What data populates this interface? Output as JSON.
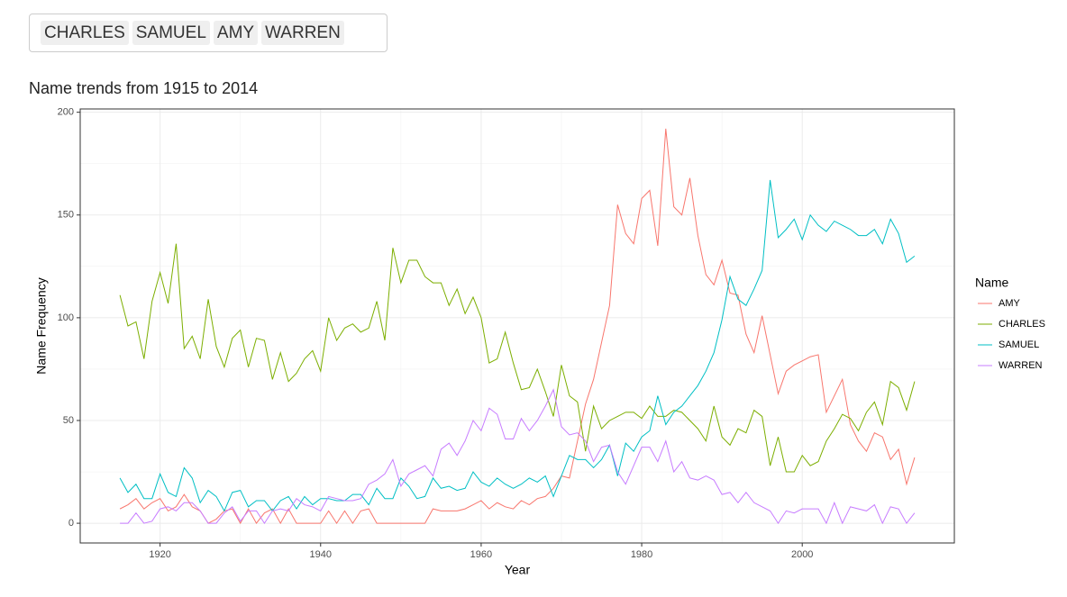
{
  "input": {
    "selected": [
      "CHARLES",
      "SAMUEL",
      "AMY",
      "WARREN"
    ]
  },
  "chart_data": {
    "type": "line",
    "title": "Name trends from 1915 to 2014",
    "x_label": "Year",
    "y_label": "Name Frequency",
    "legend_title": "Name",
    "legend": "right",
    "grid": true,
    "x": [
      1915,
      1916,
      1917,
      1918,
      1919,
      1920,
      1921,
      1922,
      1923,
      1924,
      1925,
      1926,
      1927,
      1928,
      1929,
      1930,
      1931,
      1932,
      1933,
      1934,
      1935,
      1936,
      1937,
      1938,
      1939,
      1940,
      1941,
      1942,
      1943,
      1944,
      1945,
      1946,
      1947,
      1948,
      1949,
      1950,
      1951,
      1952,
      1953,
      1954,
      1955,
      1956,
      1957,
      1958,
      1959,
      1960,
      1961,
      1962,
      1963,
      1964,
      1965,
      1966,
      1967,
      1968,
      1969,
      1970,
      1971,
      1972,
      1973,
      1974,
      1975,
      1976,
      1977,
      1978,
      1979,
      1980,
      1981,
      1982,
      1983,
      1984,
      1985,
      1986,
      1987,
      1988,
      1989,
      1990,
      1991,
      1992,
      1993,
      1994,
      1995,
      1996,
      1997,
      1998,
      1999,
      2000,
      2001,
      2002,
      2003,
      2004,
      2005,
      2006,
      2007,
      2008,
      2009,
      2010,
      2011,
      2012,
      2013,
      2014
    ],
    "xlim": [
      1910.05,
      2018.95
    ],
    "xticks": [
      1920,
      1940,
      1960,
      1980,
      2000
    ],
    "ylim": [
      -9.6,
      201.6
    ],
    "yticks": [
      0,
      50,
      100,
      150,
      200
    ],
    "series": [
      {
        "name": "AMY",
        "color": "#F8766D",
        "values": [
          7,
          9,
          12,
          7,
          10,
          12,
          6,
          8,
          14,
          8,
          6,
          0,
          2,
          6,
          7,
          0,
          7,
          0,
          5,
          7,
          0,
          7,
          0,
          0,
          0,
          0,
          6,
          0,
          6,
          0,
          6,
          7,
          0,
          0,
          0,
          0,
          0,
          0,
          0,
          7,
          6,
          6,
          6,
          7,
          9,
          11,
          7,
          10,
          8,
          7,
          11,
          9,
          12,
          13,
          17,
          23,
          22,
          40,
          58,
          70,
          88,
          106,
          155,
          141,
          136,
          158,
          162,
          135,
          192,
          154,
          150,
          168,
          140,
          121,
          116,
          128,
          112,
          111,
          92,
          83,
          101,
          82,
          63,
          74,
          77,
          79,
          81,
          82,
          54,
          62,
          70,
          48,
          40,
          35,
          44,
          42,
          31,
          36,
          19,
          32
        ]
      },
      {
        "name": "CHARLES",
        "color": "#7CAE00",
        "values": [
          111,
          96,
          98,
          80,
          108,
          122,
          107,
          136,
          85,
          91,
          80,
          109,
          86,
          76,
          90,
          94,
          76,
          90,
          89,
          70,
          83,
          69,
          73,
          80,
          84,
          74,
          100,
          89,
          95,
          97,
          93,
          95,
          108,
          89,
          134,
          117,
          128,
          128,
          120,
          117,
          117,
          106,
          114,
          102,
          110,
          100,
          78,
          80,
          93,
          78,
          65,
          66,
          75,
          64,
          52,
          77,
          62,
          59,
          35,
          57,
          46,
          50,
          52,
          54,
          54,
          51,
          57,
          52,
          52,
          55,
          54,
          50,
          46,
          40,
          57,
          42,
          38,
          46,
          44,
          55,
          52,
          28,
          42,
          25,
          25,
          33,
          28,
          30,
          40,
          46,
          53,
          51,
          45,
          54,
          59,
          48,
          69,
          66,
          55,
          69
        ]
      },
      {
        "name": "SAMUEL",
        "color": "#00BFC4",
        "values": [
          22,
          15,
          19,
          12,
          12,
          24,
          15,
          13,
          27,
          22,
          10,
          16,
          13,
          6,
          15,
          16,
          8,
          11,
          11,
          6,
          11,
          13,
          7,
          13,
          9,
          12,
          12,
          11,
          11,
          14,
          14,
          9,
          17,
          12,
          12,
          22,
          18,
          12,
          13,
          22,
          17,
          18,
          16,
          17,
          25,
          20,
          18,
          22,
          19,
          17,
          19,
          22,
          20,
          23,
          13,
          23,
          33,
          31,
          31,
          27,
          31,
          38,
          23,
          39,
          35,
          42,
          45,
          62,
          48,
          54,
          57,
          62,
          67,
          74,
          83,
          99,
          120,
          109,
          106,
          114,
          123,
          167,
          139,
          143,
          148,
          138,
          150,
          145,
          142,
          147,
          145,
          143,
          140,
          140,
          143,
          136,
          148,
          141,
          127,
          130
        ]
      },
      {
        "name": "WARREN",
        "color": "#C77CFF",
        "values": [
          0,
          0,
          5,
          0,
          1,
          7,
          8,
          6,
          10,
          10,
          6,
          0,
          0,
          5,
          8,
          1,
          6,
          6,
          0,
          6,
          7,
          6,
          12,
          9,
          8,
          6,
          13,
          12,
          11,
          11,
          12,
          19,
          21,
          24,
          31,
          18,
          24,
          26,
          28,
          23,
          36,
          39,
          33,
          40,
          50,
          45,
          56,
          53,
          41,
          41,
          51,
          45,
          50,
          57,
          65,
          47,
          43,
          44,
          40,
          30,
          37,
          38,
          25,
          19,
          28,
          37,
          37,
          30,
          40,
          25,
          30,
          22,
          21,
          23,
          21,
          14,
          15,
          10,
          15,
          10,
          8,
          6,
          0,
          6,
          5,
          7,
          7,
          7,
          0,
          10,
          0,
          8,
          7,
          6,
          9,
          0,
          8,
          7,
          0,
          5
        ]
      }
    ]
  }
}
